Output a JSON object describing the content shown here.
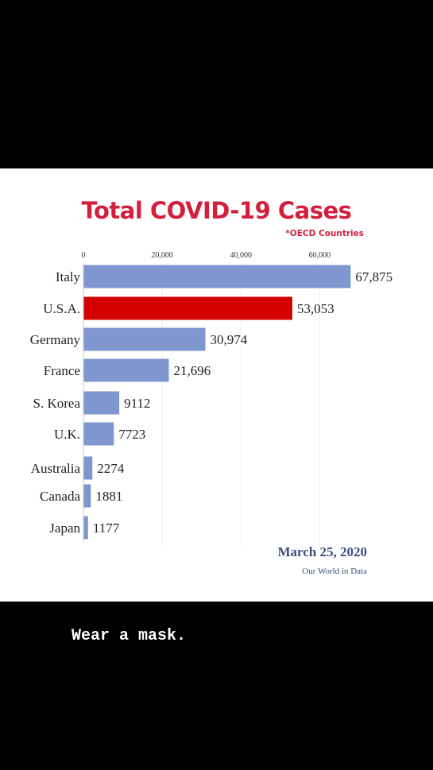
{
  "caption": "Wear a mask.",
  "chart_data": {
    "type": "bar",
    "orientation": "horizontal",
    "title": "Total COVID-19 Cases",
    "subtitle": "*OECD Countries",
    "categories": [
      "Italy",
      "U.S.A.",
      "Germany",
      "France",
      "S. Korea",
      "U.K.",
      "Australia",
      "Canada",
      "Japan"
    ],
    "values": [
      67875,
      53053,
      30974,
      21696,
      9112,
      7723,
      2274,
      1881,
      1177
    ],
    "value_labels": [
      "67,875",
      "53,053",
      "30,974",
      "21,696",
      "9112",
      "7723",
      "2274",
      "1881",
      "1177"
    ],
    "xticks": [
      0,
      20000,
      40000,
      60000
    ],
    "xtick_labels": [
      "0",
      "20,000",
      "40,000",
      "60,000"
    ],
    "xlim": [
      0,
      68000
    ],
    "grid": true,
    "highlight": "U.S.A.",
    "date": "March 25, 2020",
    "source": "Our World in Data",
    "colors": {
      "bar": "#7f97ce",
      "highlight": "#d50000",
      "title": "#d31f3d",
      "date": "#3b4f7a"
    }
  }
}
